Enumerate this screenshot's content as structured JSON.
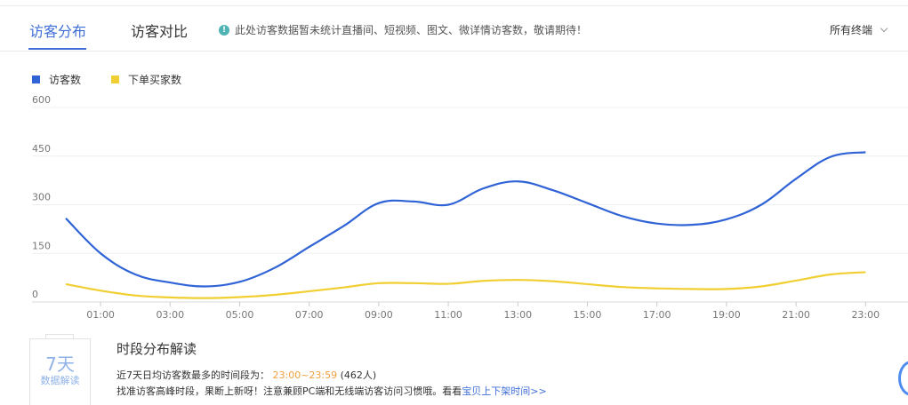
{
  "tabs": [
    {
      "label": "访客分布",
      "active": true
    },
    {
      "label": "访客对比",
      "active": false
    }
  ],
  "notice": {
    "icon": "info-icon",
    "text": "此处访客数据暂未统计直播间、短视频、图文、微详情访客数，敬请期待！"
  },
  "device_select": {
    "value": "所有终端"
  },
  "colors": {
    "accent": "#3f6ed8",
    "series1": "#2f63d6",
    "series2": "#f1cf33",
    "highlight": "#f0a040"
  },
  "chart_data": {
    "type": "line",
    "legend_position": "top-left",
    "grid": true,
    "x": [
      "00:00",
      "01:00",
      "02:00",
      "03:00",
      "04:00",
      "05:00",
      "06:00",
      "07:00",
      "08:00",
      "09:00",
      "10:00",
      "11:00",
      "12:00",
      "13:00",
      "14:00",
      "15:00",
      "16:00",
      "17:00",
      "18:00",
      "19:00",
      "20:00",
      "21:00",
      "22:00",
      "23:00"
    ],
    "x_tick_labels": [
      "01:00",
      "03:00",
      "05:00",
      "07:00",
      "09:00",
      "11:00",
      "13:00",
      "15:00",
      "17:00",
      "19:00",
      "21:00",
      "23:00"
    ],
    "y_ticks": [
      0,
      150,
      300,
      450,
      600
    ],
    "ylim": [
      0,
      600
    ],
    "series": [
      {
        "name": "访客数",
        "values": [
          258,
          150,
          85,
          60,
          48,
          62,
          105,
          170,
          235,
          305,
          310,
          300,
          350,
          372,
          345,
          305,
          265,
          242,
          238,
          255,
          300,
          380,
          448,
          462
        ]
      },
      {
        "name": "下单买家数",
        "values": [
          55,
          35,
          20,
          14,
          12,
          15,
          22,
          33,
          45,
          58,
          58,
          56,
          65,
          68,
          64,
          55,
          46,
          42,
          40,
          40,
          48,
          66,
          85,
          92
        ]
      }
    ]
  },
  "interpretation": {
    "badge_big": "7天",
    "badge_small": "数据解读",
    "title": "时段分布解读",
    "line1_prefix": "近7天日均访客数最多的时间段为：",
    "line1_range": "23:00~23:59",
    "line1_suffix": "(462人)",
    "line2_prefix": "找准访客高峰时段，果断上新呀！注意兼顾PC端和无线端访客访问习惯哦。看看",
    "line2_link": "宝贝上下架时间>>"
  }
}
